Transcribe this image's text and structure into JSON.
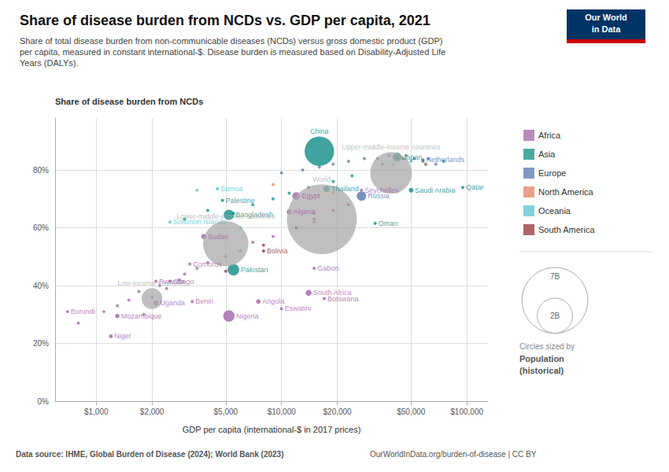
{
  "chart_data": {
    "type": "scatter",
    "title": "Share of disease burden from NCDs vs. GDP per capita, 2021",
    "subtitle": "Share of total disease burden from non-communicable diseases (NCDs) versus gross domestic product (GDP)\nper capita, measured in constant international-$. Disease burden is measured based on Disability-Adjusted Life\nYears (DALYs).",
    "xlabel": "GDP per capita (international-$ in 2017 prices)",
    "ylabel": "Share of disease burden from NCDs",
    "source": "Data source: IHME, Global Burden of Disease (2024); World Bank (2023)",
    "url": "OurWorldInData.org/burden-of-disease | CC BY",
    "logo": [
      "Our World",
      "in Data"
    ],
    "log": "x",
    "grid": true,
    "legend": "right",
    "xlim": [
      600,
      130000
    ],
    "xticks": [
      {
        "value": 1000,
        "label": "$1,000"
      },
      {
        "value": 2000,
        "label": "$2,000"
      },
      {
        "value": 5000,
        "label": "$5,000"
      },
      {
        "value": 10000,
        "label": "$10,000"
      },
      {
        "value": 20000,
        "label": "$20,000"
      },
      {
        "value": 50000,
        "label": "$50,000"
      },
      {
        "value": 100000,
        "label": "$100,000"
      }
    ],
    "ylim": [
      0,
      0.98
    ],
    "yticks": [
      {
        "value": 0,
        "label": "0%"
      },
      {
        "value": 0.2,
        "label": "20%"
      },
      {
        "value": 0.4,
        "label": "40%"
      },
      {
        "value": 0.6,
        "label": "60%"
      },
      {
        "value": 0.8,
        "label": "80%"
      }
    ],
    "series": [
      {
        "name": "Africa",
        "type": "scatter",
        "color": "#9B59A0",
        "x": [
          800,
          1100,
          1300,
          1500,
          1700,
          1800,
          2000,
          2200,
          2400,
          2800,
          3000,
          3500,
          4000,
          5000,
          6000,
          7000,
          9000,
          12000,
          15000
        ],
        "values": [
          0.27,
          0.31,
          0.33,
          0.35,
          0.38,
          0.3,
          0.36,
          0.4,
          0.39,
          0.42,
          0.44,
          0.46,
          0.48,
          0.5,
          0.52,
          0.55,
          0.57,
          0.6,
          0.62
        ]
      },
      {
        "name": "Asia",
        "type": "scatter",
        "color": "#00847E",
        "x": [
          3000,
          4000,
          5500,
          7000,
          9000,
          11000,
          14000,
          19000,
          24000,
          35000,
          45000,
          60000,
          75000
        ],
        "values": [
          0.63,
          0.66,
          0.65,
          0.68,
          0.7,
          0.72,
          0.74,
          0.76,
          0.78,
          0.82,
          0.84,
          0.82,
          0.83
        ]
      },
      {
        "name": "Europe",
        "type": "scatter",
        "color": "#4B6EA8",
        "x": [
          10000,
          13000,
          16000,
          19000,
          23000,
          28000,
          33000,
          38000,
          42000,
          47000,
          52000,
          58000,
          62000,
          68000
        ],
        "values": [
          0.79,
          0.8,
          0.81,
          0.82,
          0.83,
          0.84,
          0.84,
          0.85,
          0.84,
          0.85,
          0.84,
          0.83,
          0.84,
          0.82
        ]
      },
      {
        "name": "North America",
        "type": "scatter",
        "color": "#E07B54",
        "x": [
          9000,
          15000,
          19000,
          60000
        ],
        "values": [
          0.75,
          0.65,
          0.72,
          0.82
        ]
      },
      {
        "name": "Oceania",
        "type": "scatter",
        "color": "#4BBFCE",
        "x": [
          3500,
          6000,
          40000,
          50000
        ],
        "values": [
          0.73,
          0.6,
          0.82,
          0.83
        ]
      },
      {
        "name": "South America",
        "type": "scatter",
        "color": "#8B2426",
        "x": [
          5000,
          8000,
          12000,
          15000,
          19000,
          23000
        ],
        "values": [
          0.45,
          0.54,
          0.6,
          0.63,
          0.66,
          0.68
        ]
      },
      {
        "type": "bubble",
        "labels": [
          "China",
          "Japan",
          "Netherlands",
          "Thailand",
          "Seychelles",
          "Russia",
          "Saudi Arabia",
          "Qatar",
          "Samoa",
          "Palestine",
          "Bangladesh",
          "Egypt",
          "Algeria",
          "Oman",
          "Sudan",
          "Bolivia",
          "Comoros",
          "Pakistan",
          "Rwanda",
          "Congo",
          "Gabon",
          "South Africa",
          "Botswana",
          "Eswatini",
          "Angola",
          "Nigeria",
          "Benin",
          "Uganda",
          "Mozambique",
          "Niger",
          "Burundi",
          "Solomon Islands",
          "World",
          "Upper-middle-income countries",
          "Lower-middle-income countries",
          "Low-income countries"
        ],
        "x": [
          16000,
          42000,
          58000,
          17500,
          27000,
          27000,
          50000,
          95000,
          4500,
          4800,
          5200,
          12000,
          11000,
          32000,
          3800,
          8000,
          3200,
          5500,
          2100,
          2500,
          15000,
          14000,
          17000,
          10000,
          7500,
          5200,
          3300,
          2100,
          1300,
          1200,
          700,
          2500,
          16500,
          39000,
          5000,
          2000
        ],
        "values": [
          0.865,
          0.845,
          0.835,
          0.735,
          0.73,
          0.71,
          0.73,
          0.74,
          0.735,
          0.695,
          0.645,
          0.71,
          0.655,
          0.615,
          0.57,
          0.52,
          0.475,
          0.455,
          0.415,
          0.415,
          0.46,
          0.375,
          0.355,
          0.32,
          0.345,
          0.295,
          0.345,
          0.34,
          0.295,
          0.225,
          0.31,
          0.62,
          0.63,
          0.79,
          0.545,
          0.355
        ],
        "sizes": [
          1400,
          125,
          17,
          70,
          0.1,
          145,
          35,
          2.8,
          0.2,
          5,
          170,
          102,
          44,
          4.5,
          44,
          12,
          0.9,
          220,
          13,
          5.5,
          2.2,
          60,
          2.5,
          1.2,
          33,
          210,
          12,
          47,
          32,
          24,
          12,
          0.7,
          7900,
          2800,
          3300,
          700
        ],
        "colors": [
          "#00847E",
          "#00847E",
          "#4B6EA8",
          "#00847E",
          "#9B59A0",
          "#4B6EA8",
          "#00847E",
          "#00847E",
          "#4BBFCE",
          "#00847E",
          "#00847E",
          "#9B59A0",
          "#9B59A0",
          "#00847E",
          "#9B59A0",
          "#8B2426",
          "#9B59A0",
          "#00847E",
          "#9B59A0",
          "#9B59A0",
          "#9B59A0",
          "#9B59A0",
          "#9B59A0",
          "#9B59A0",
          "#9B59A0",
          "#9B59A0",
          "#9B59A0",
          "#9B59A0",
          "#9B59A0",
          "#9B59A0",
          "#9B59A0",
          "#4BBFCE",
          "#AAAAAA",
          "#AAAAAA",
          "#AAAAAA",
          "#AAAAAA"
        ]
      }
    ],
    "size_legend": {
      "title": "Circles sized by",
      "name": "Population",
      "note": "(historical)",
      "values": [
        7000,
        2000
      ],
      "labels": [
        "7B",
        "2B"
      ]
    }
  }
}
